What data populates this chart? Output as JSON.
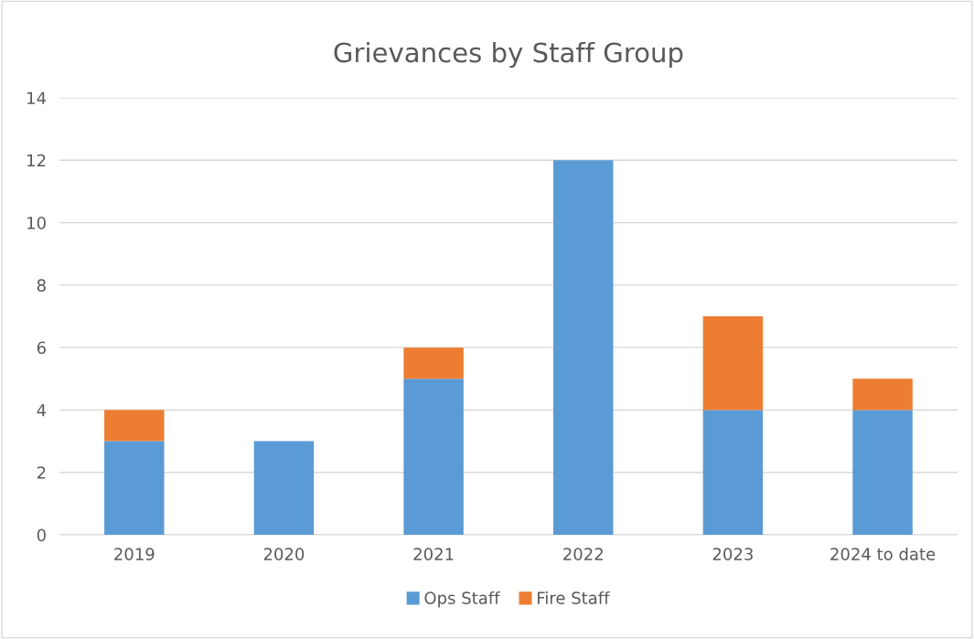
{
  "chart_data": {
    "type": "bar",
    "title": "Grievances by Staff Group",
    "categories": [
      "2019",
      "2020",
      "2021",
      "2022",
      "2023",
      "2024 to date"
    ],
    "stacked": true,
    "series": [
      {
        "name": "Ops Staff",
        "color": "#5b9bd5",
        "values": [
          3,
          3,
          5,
          12,
          4,
          4
        ]
      },
      {
        "name": "Fire Staff",
        "color": "#ed7d31",
        "values": [
          1,
          null,
          1,
          null,
          3,
          1
        ]
      }
    ],
    "ylim": [
      0,
      14
    ],
    "yticks": [
      0,
      2,
      4,
      6,
      8,
      10,
      12,
      14
    ],
    "grid": "y",
    "legend": "bottom"
  }
}
